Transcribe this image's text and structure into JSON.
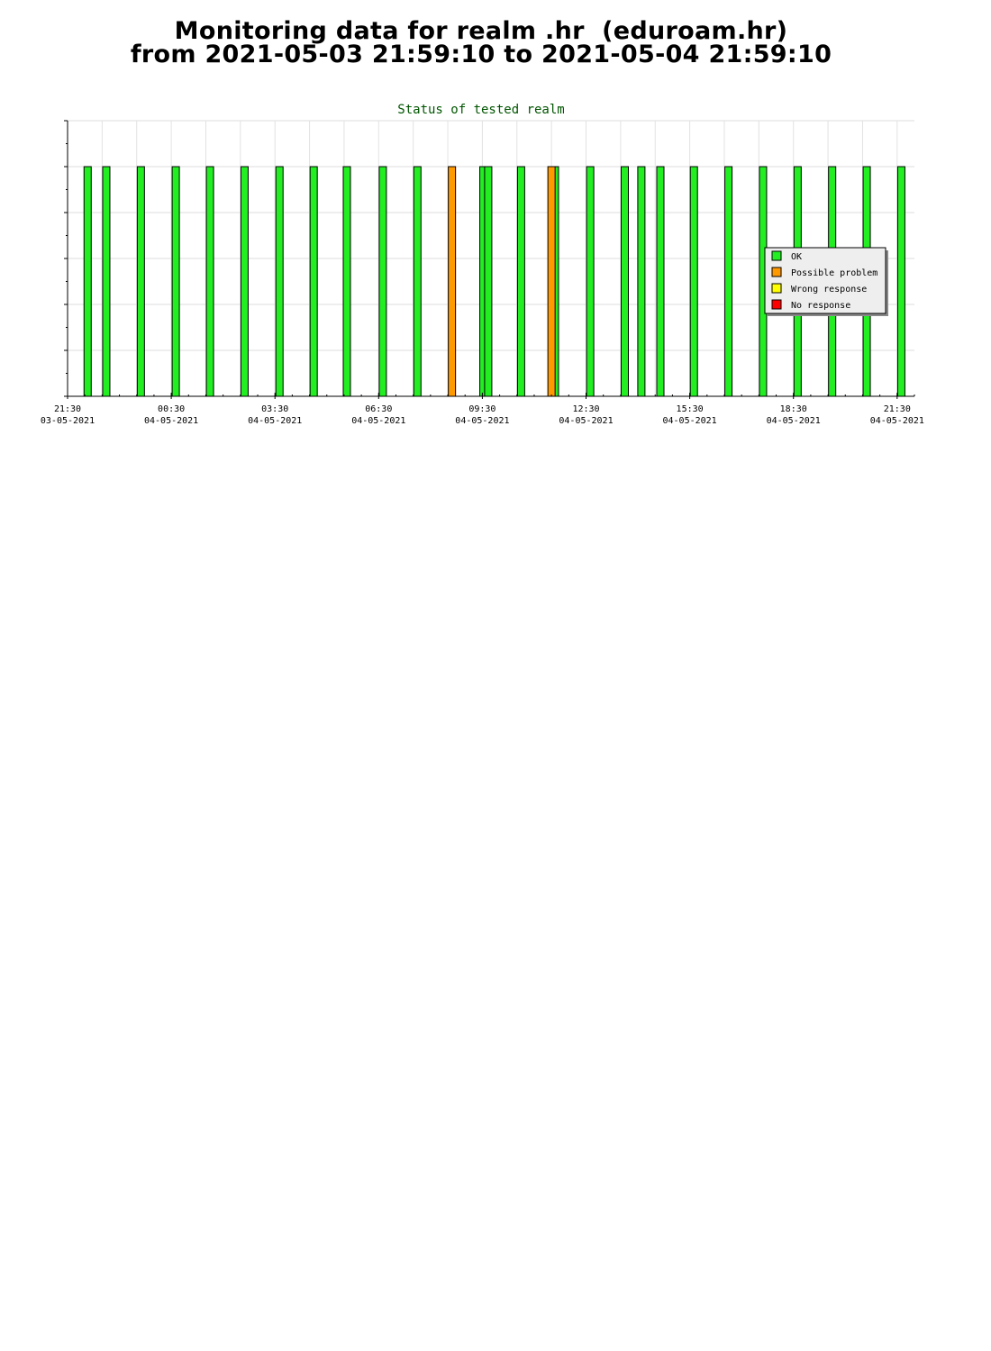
{
  "page": {
    "title_line1": "Monitoring data for realm .hr  (eduroam.hr)",
    "title_line2": "from 2021-05-03 21:59:10 to 2021-05-04 21:59:10"
  },
  "chart_data": {
    "type": "bar",
    "title": "Status of tested realm",
    "xlabel": "",
    "ylabel": "",
    "x_unit": "hours since 2021-05-03 21:30",
    "xlim": [
      0,
      24.5
    ],
    "ylim": [
      0,
      6
    ],
    "y_tick_labels": false,
    "grid": true,
    "legend_position": "right",
    "x_ticks": [
      {
        "x": 0,
        "time": "21:30",
        "date": "03-05-2021"
      },
      {
        "x": 3,
        "time": "00:30",
        "date": "04-05-2021"
      },
      {
        "x": 6,
        "time": "03:30",
        "date": "04-05-2021"
      },
      {
        "x": 9,
        "time": "06:30",
        "date": "04-05-2021"
      },
      {
        "x": 12,
        "time": "09:30",
        "date": "04-05-2021"
      },
      {
        "x": 15,
        "time": "12:30",
        "date": "04-05-2021"
      },
      {
        "x": 18,
        "time": "15:30",
        "date": "04-05-2021"
      },
      {
        "x": 21,
        "time": "18:30",
        "date": "04-05-2021"
      },
      {
        "x": 24,
        "time": "21:30",
        "date": "04-05-2021"
      }
    ],
    "status_colors": {
      "OK": "#22ee22",
      "Possible problem": "#ff9900",
      "Wrong response": "#ffff00",
      "No response": "#ff0000"
    },
    "legend": [
      "OK",
      "Possible problem",
      "Wrong response",
      "No response"
    ],
    "series": [
      {
        "name": "OK",
        "points": [
          {
            "x": 0.58,
            "y": 5
          },
          {
            "x": 1.12,
            "y": 5
          },
          {
            "x": 2.12,
            "y": 5
          },
          {
            "x": 3.13,
            "y": 5
          },
          {
            "x": 4.12,
            "y": 5
          },
          {
            "x": 5.12,
            "y": 5
          },
          {
            "x": 6.13,
            "y": 5
          },
          {
            "x": 7.12,
            "y": 5
          },
          {
            "x": 8.08,
            "y": 5
          },
          {
            "x": 9.12,
            "y": 5
          },
          {
            "x": 10.12,
            "y": 5
          },
          {
            "x": 12.03,
            "y": 5
          },
          {
            "x": 12.17,
            "y": 5
          },
          {
            "x": 13.12,
            "y": 5
          },
          {
            "x": 14.1,
            "y": 5
          },
          {
            "x": 15.12,
            "y": 5
          },
          {
            "x": 16.12,
            "y": 5
          },
          {
            "x": 16.6,
            "y": 5
          },
          {
            "x": 17.15,
            "y": 5
          },
          {
            "x": 18.12,
            "y": 5
          },
          {
            "x": 19.12,
            "y": 5
          },
          {
            "x": 20.12,
            "y": 5
          },
          {
            "x": 21.12,
            "y": 5
          },
          {
            "x": 22.12,
            "y": 5
          },
          {
            "x": 23.12,
            "y": 5
          },
          {
            "x": 24.12,
            "y": 5
          }
        ]
      },
      {
        "name": "Possible problem",
        "points": [
          {
            "x": 11.12,
            "y": 5
          },
          {
            "x": 14.0,
            "y": 5
          }
        ]
      }
    ]
  }
}
